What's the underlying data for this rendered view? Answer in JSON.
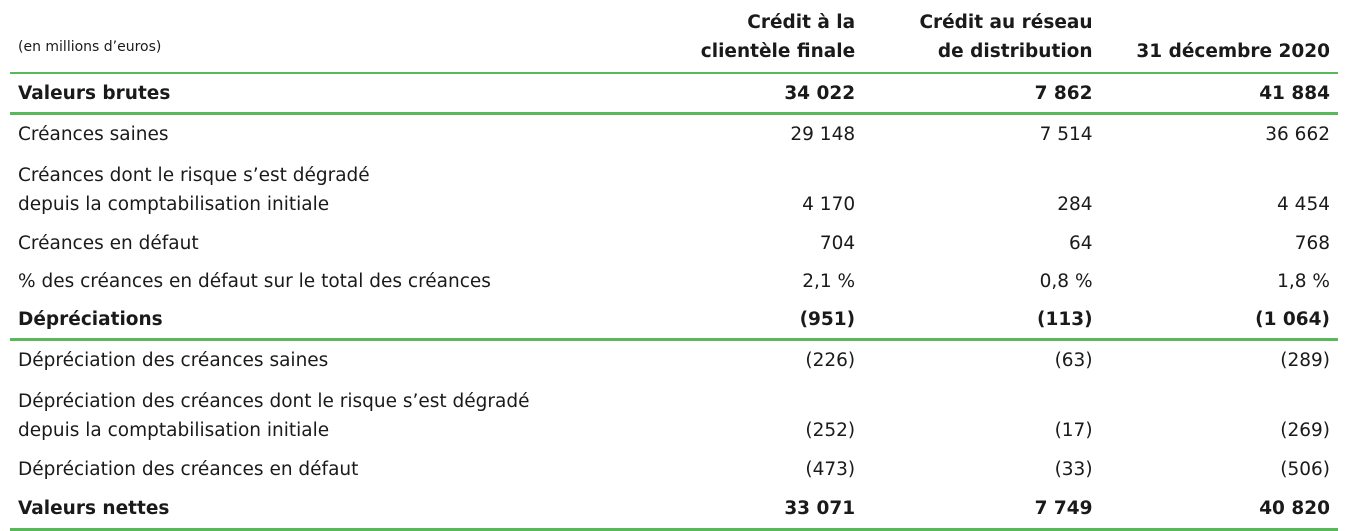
{
  "table": {
    "unit_label": "(en millions d’euros)",
    "headers": [
      [
        "Crédit à la",
        "clientèle finale"
      ],
      [
        "Crédit au réseau",
        "de distribution"
      ],
      [
        "31 décembre 2020"
      ]
    ],
    "rows": [
      {
        "label": [
          "Valeurs brutes"
        ],
        "values": [
          "34 022",
          "7 862",
          "41 884"
        ],
        "bold": true
      },
      {
        "label": [
          "Créances saines"
        ],
        "values": [
          "29 148",
          "7 514",
          "36 662"
        ],
        "bold": false
      },
      {
        "label": [
          "Créances dont le risque s’est dégradé",
          "depuis la comptabilisation initiale"
        ],
        "values": [
          "4 170",
          "284",
          "4 454"
        ],
        "bold": false
      },
      {
        "label": [
          "Créances en défaut"
        ],
        "values": [
          "704",
          "64",
          "768"
        ],
        "bold": false
      },
      {
        "label": [
          "% des créances en défaut sur le total des créances"
        ],
        "values": [
          "2,1 %",
          "0,8 %",
          "1,8 %"
        ],
        "bold": false
      },
      {
        "label": [
          "Dépréciations"
        ],
        "values": [
          "(951)",
          "(113)",
          "(1 064)"
        ],
        "bold": true
      },
      {
        "label": [
          "Dépréciation des créances saines"
        ],
        "values": [
          "(226)",
          "(63)",
          "(289)"
        ],
        "bold": false
      },
      {
        "label": [
          "Dépréciation des créances dont le risque s’est dégradé",
          "depuis la comptabilisation initiale"
        ],
        "values": [
          "(252)",
          "(17)",
          "(269)"
        ],
        "bold": false
      },
      {
        "label": [
          "Dépréciation des créances en défaut"
        ],
        "values": [
          "(473)",
          "(33)",
          "(506)"
        ],
        "bold": false
      },
      {
        "label": [
          "Valeurs nettes"
        ],
        "values": [
          "33 071",
          "7 749",
          "40 820"
        ],
        "bold": true
      }
    ],
    "rule_color": "#59b85a"
  }
}
